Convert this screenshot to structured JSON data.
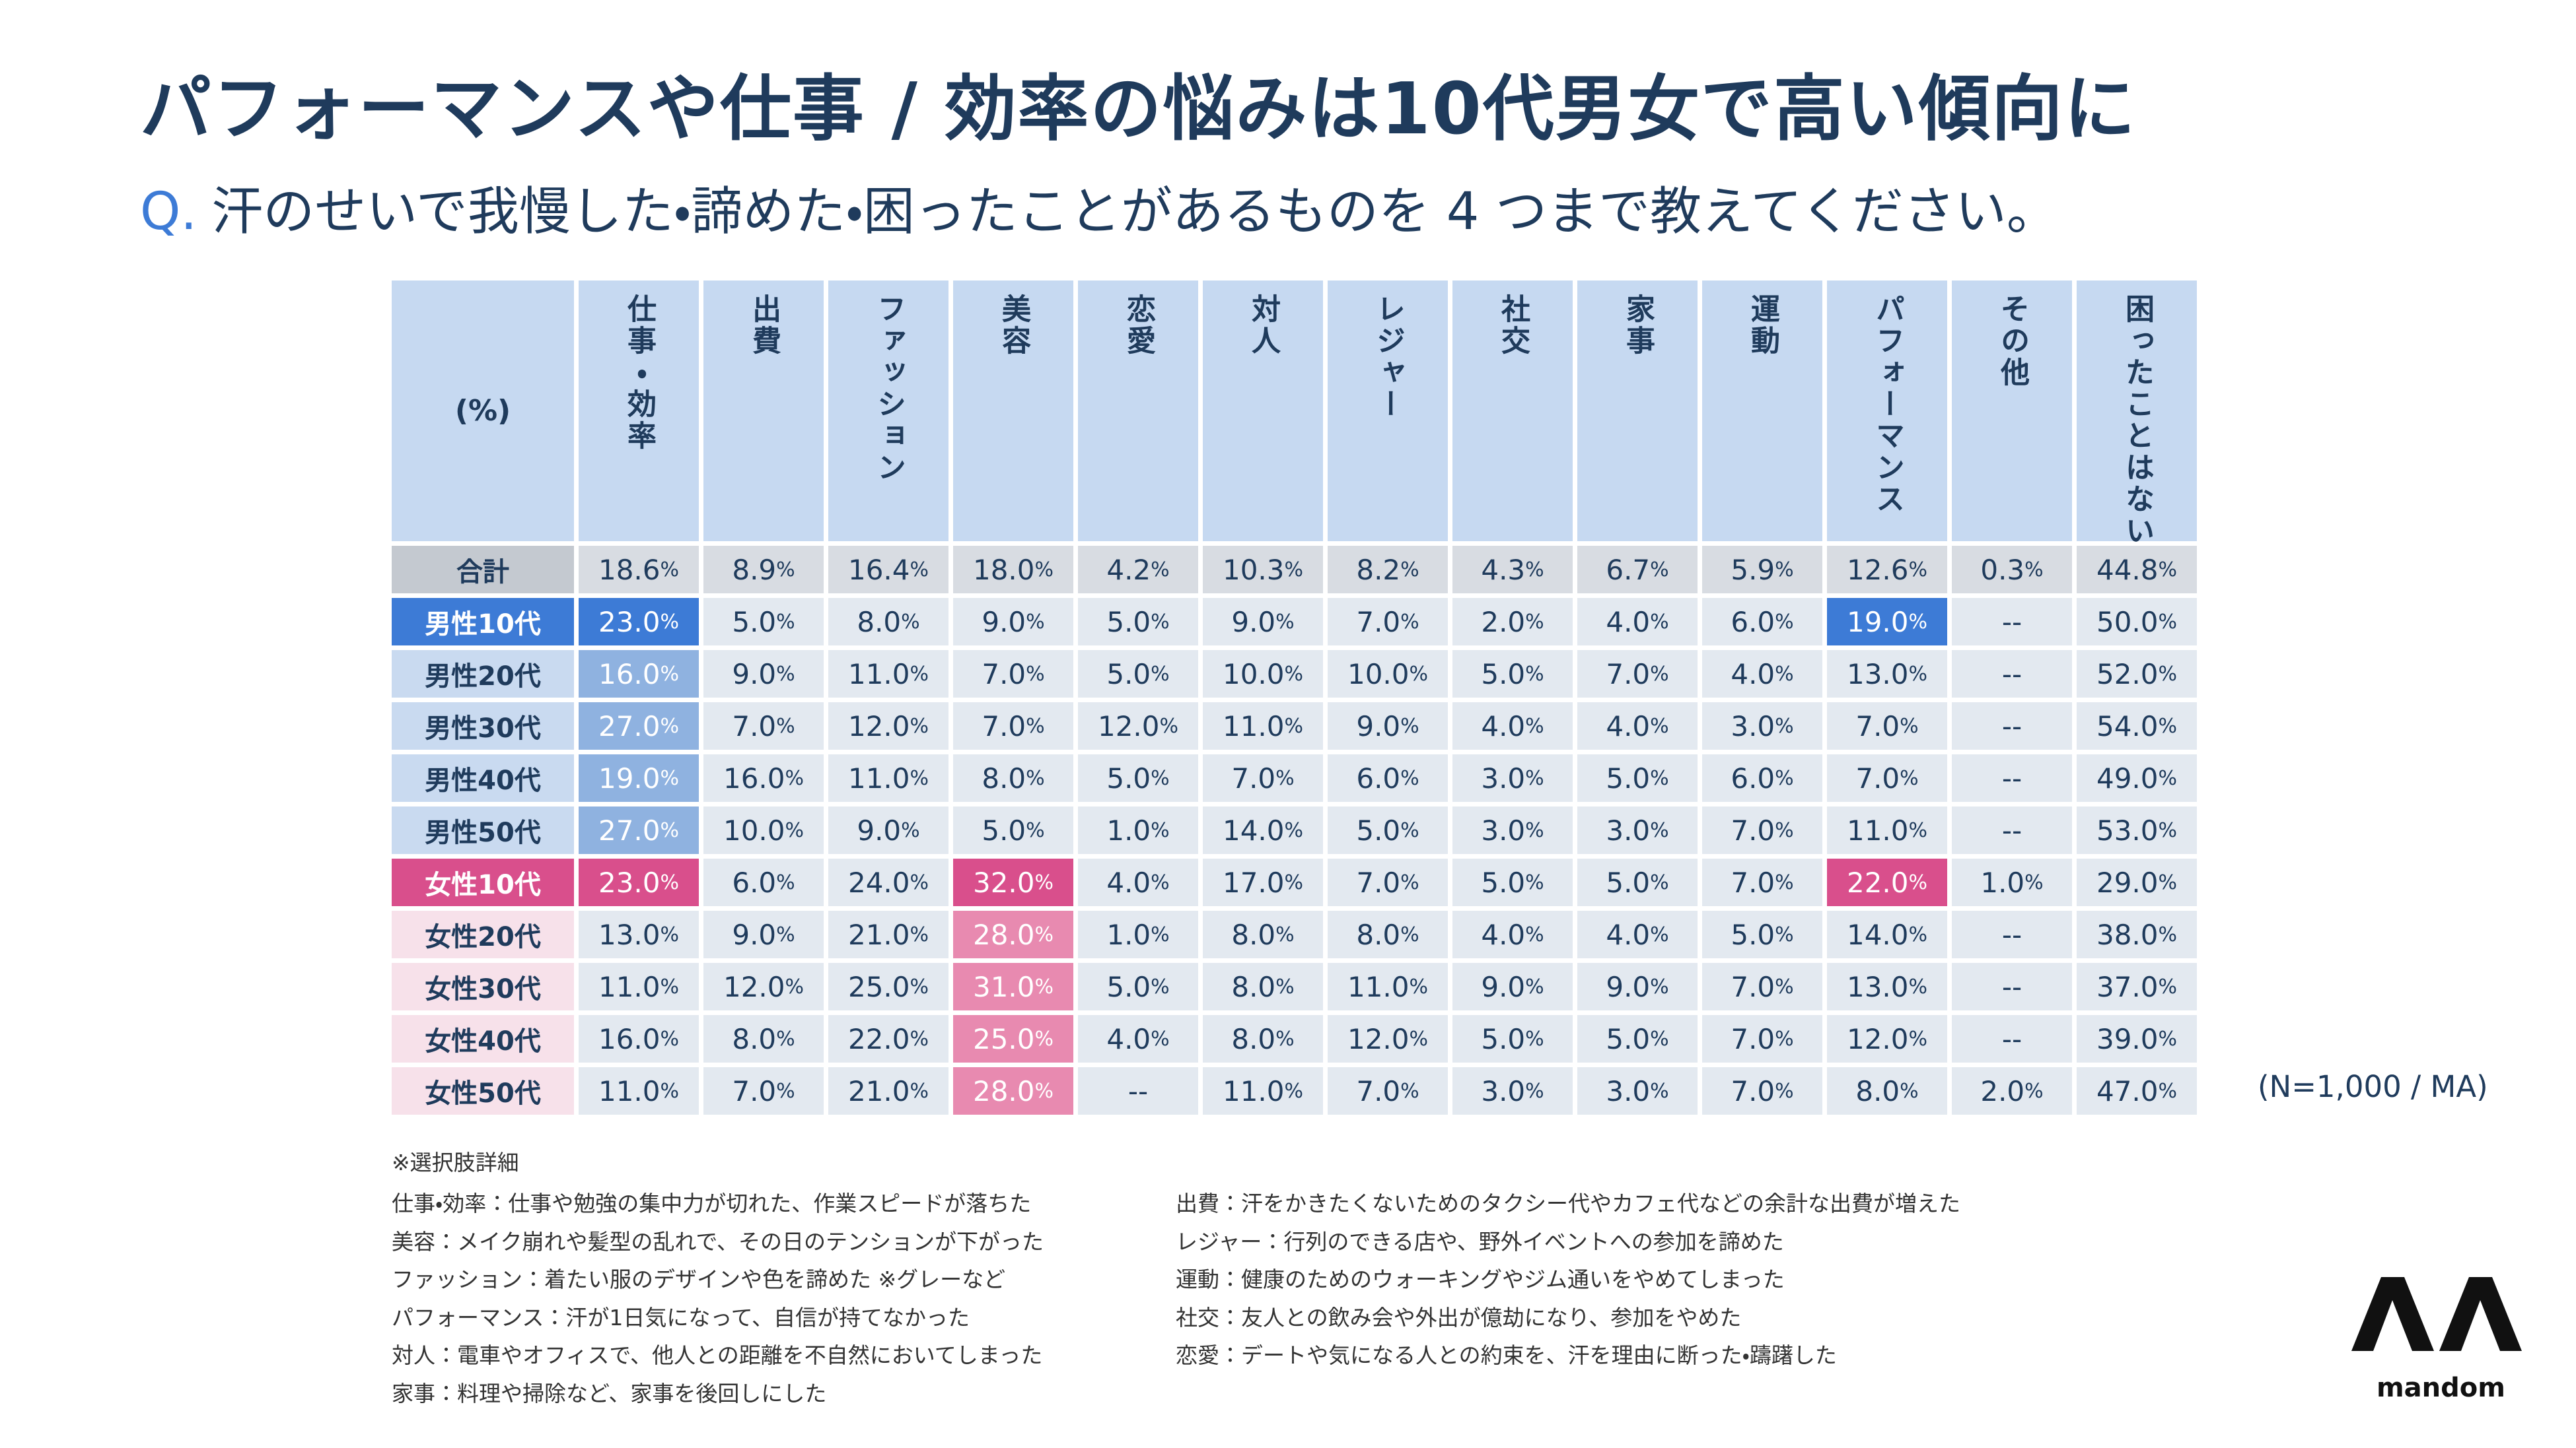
{
  "header": {
    "title": "パフォーマンスや仕事 / 効率の悩みは10代男女で高い傾向に",
    "question_mark": "Q.",
    "question": "汗のせいで我慢した・諦めた・困ったことがあるものを 4 つまで教えてください。"
  },
  "table": {
    "columns": [
      "(%)",
      "仕事・効率",
      "出費",
      "ファッション",
      "美容",
      "恋愛",
      "対人",
      "レジャー",
      "社交",
      "家事",
      "運動",
      "パフォーマンス",
      "その他",
      "困ったことはない"
    ],
    "rows": [
      [
        "合計",
        "18.6%",
        "8.9%",
        "16.4%",
        "18.0%",
        "4.2%",
        "10.3%",
        "8.2%",
        "4.3%",
        "6.7%",
        "5.9%",
        "12.6%",
        "0.3%",
        "44.8%"
      ],
      [
        "男性10代",
        "23.0%",
        "5.0%",
        "8.0%",
        "9.0%",
        "5.0%",
        "9.0%",
        "7.0%",
        "2.0%",
        "4.0%",
        "6.0%",
        "19.0%",
        "--",
        "50.0%"
      ],
      [
        "男性20代",
        "16.0%",
        "9.0%",
        "11.0%",
        "7.0%",
        "5.0%",
        "10.0%",
        "10.0%",
        "5.0%",
        "7.0%",
        "4.0%",
        "13.0%",
        "--",
        "52.0%"
      ],
      [
        "男性30代",
        "27.0%",
        "7.0%",
        "12.0%",
        "7.0%",
        "12.0%",
        "11.0%",
        "9.0%",
        "4.0%",
        "4.0%",
        "3.0%",
        "7.0%",
        "--",
        "54.0%"
      ],
      [
        "男性40代",
        "19.0%",
        "16.0%",
        "11.0%",
        "8.0%",
        "5.0%",
        "7.0%",
        "6.0%",
        "3.0%",
        "5.0%",
        "6.0%",
        "7.0%",
        "--",
        "49.0%"
      ],
      [
        "男性50代",
        "27.0%",
        "10.0%",
        "9.0%",
        "5.0%",
        "1.0%",
        "14.0%",
        "5.0%",
        "3.0%",
        "3.0%",
        "7.0%",
        "11.0%",
        "--",
        "53.0%"
      ],
      [
        "女性10代",
        "23.0%",
        "6.0%",
        "24.0%",
        "32.0%",
        "4.0%",
        "17.0%",
        "7.0%",
        "5.0%",
        "5.0%",
        "7.0%",
        "22.0%",
        "1.0%",
        "29.0%"
      ],
      [
        "女性20代",
        "13.0%",
        "9.0%",
        "21.0%",
        "28.0%",
        "1.0%",
        "8.0%",
        "8.0%",
        "4.0%",
        "4.0%",
        "5.0%",
        "14.0%",
        "--",
        "38.0%"
      ],
      [
        "女性30代",
        "11.0%",
        "12.0%",
        "25.0%",
        "31.0%",
        "5.0%",
        "8.0%",
        "11.0%",
        "9.0%",
        "9.0%",
        "7.0%",
        "13.0%",
        "--",
        "37.0%"
      ],
      [
        "女性40代",
        "16.0%",
        "8.0%",
        "22.0%",
        "25.0%",
        "4.0%",
        "8.0%",
        "12.0%",
        "5.0%",
        "5.0%",
        "7.0%",
        "12.0%",
        "--",
        "39.0%"
      ],
      [
        "女性50代",
        "11.0%",
        "7.0%",
        "21.0%",
        "28.0%",
        "--",
        "11.0%",
        "7.0%",
        "3.0%",
        "3.0%",
        "7.0%",
        "8.0%",
        "2.0%",
        "47.0%"
      ]
    ],
    "note": "(N=1,000 / MA)"
  },
  "notes": {
    "heading": "※選択肢詳細",
    "left": [
      "仕事・効率：仕事や勉強の集中力が切れた、作業スピードが落ちた",
      "美容：メイク崩れや髪型の乱れで、その日のテンションが下がった",
      "ファッション：着たい服のデザインや色を諦めた ※グレーなど",
      "パフォーマンス：汗が1日気になって、自信が持てなかった",
      "対人：電車やオフィスで、他人との距離を不自然においてしまった",
      "家事：料理や掃除など、家事を後回しにした"
    ],
    "right": [
      "出費：汗をかきたくないためのタクシー代やカフェ代などの余計な出費が増えた",
      "レジャー：行列のできる店や、野外イベントへの参加を諦めた",
      "運動：健康のためのウォーキングやジム通いをやめてしまった",
      "社交：友人との飲み会や外出が億劫になり、参加をやめた",
      "恋愛：デートや気になる人との約束を、汗を理由に断った・躊躇した"
    ]
  },
  "logo": {
    "text": "mandom"
  }
}
